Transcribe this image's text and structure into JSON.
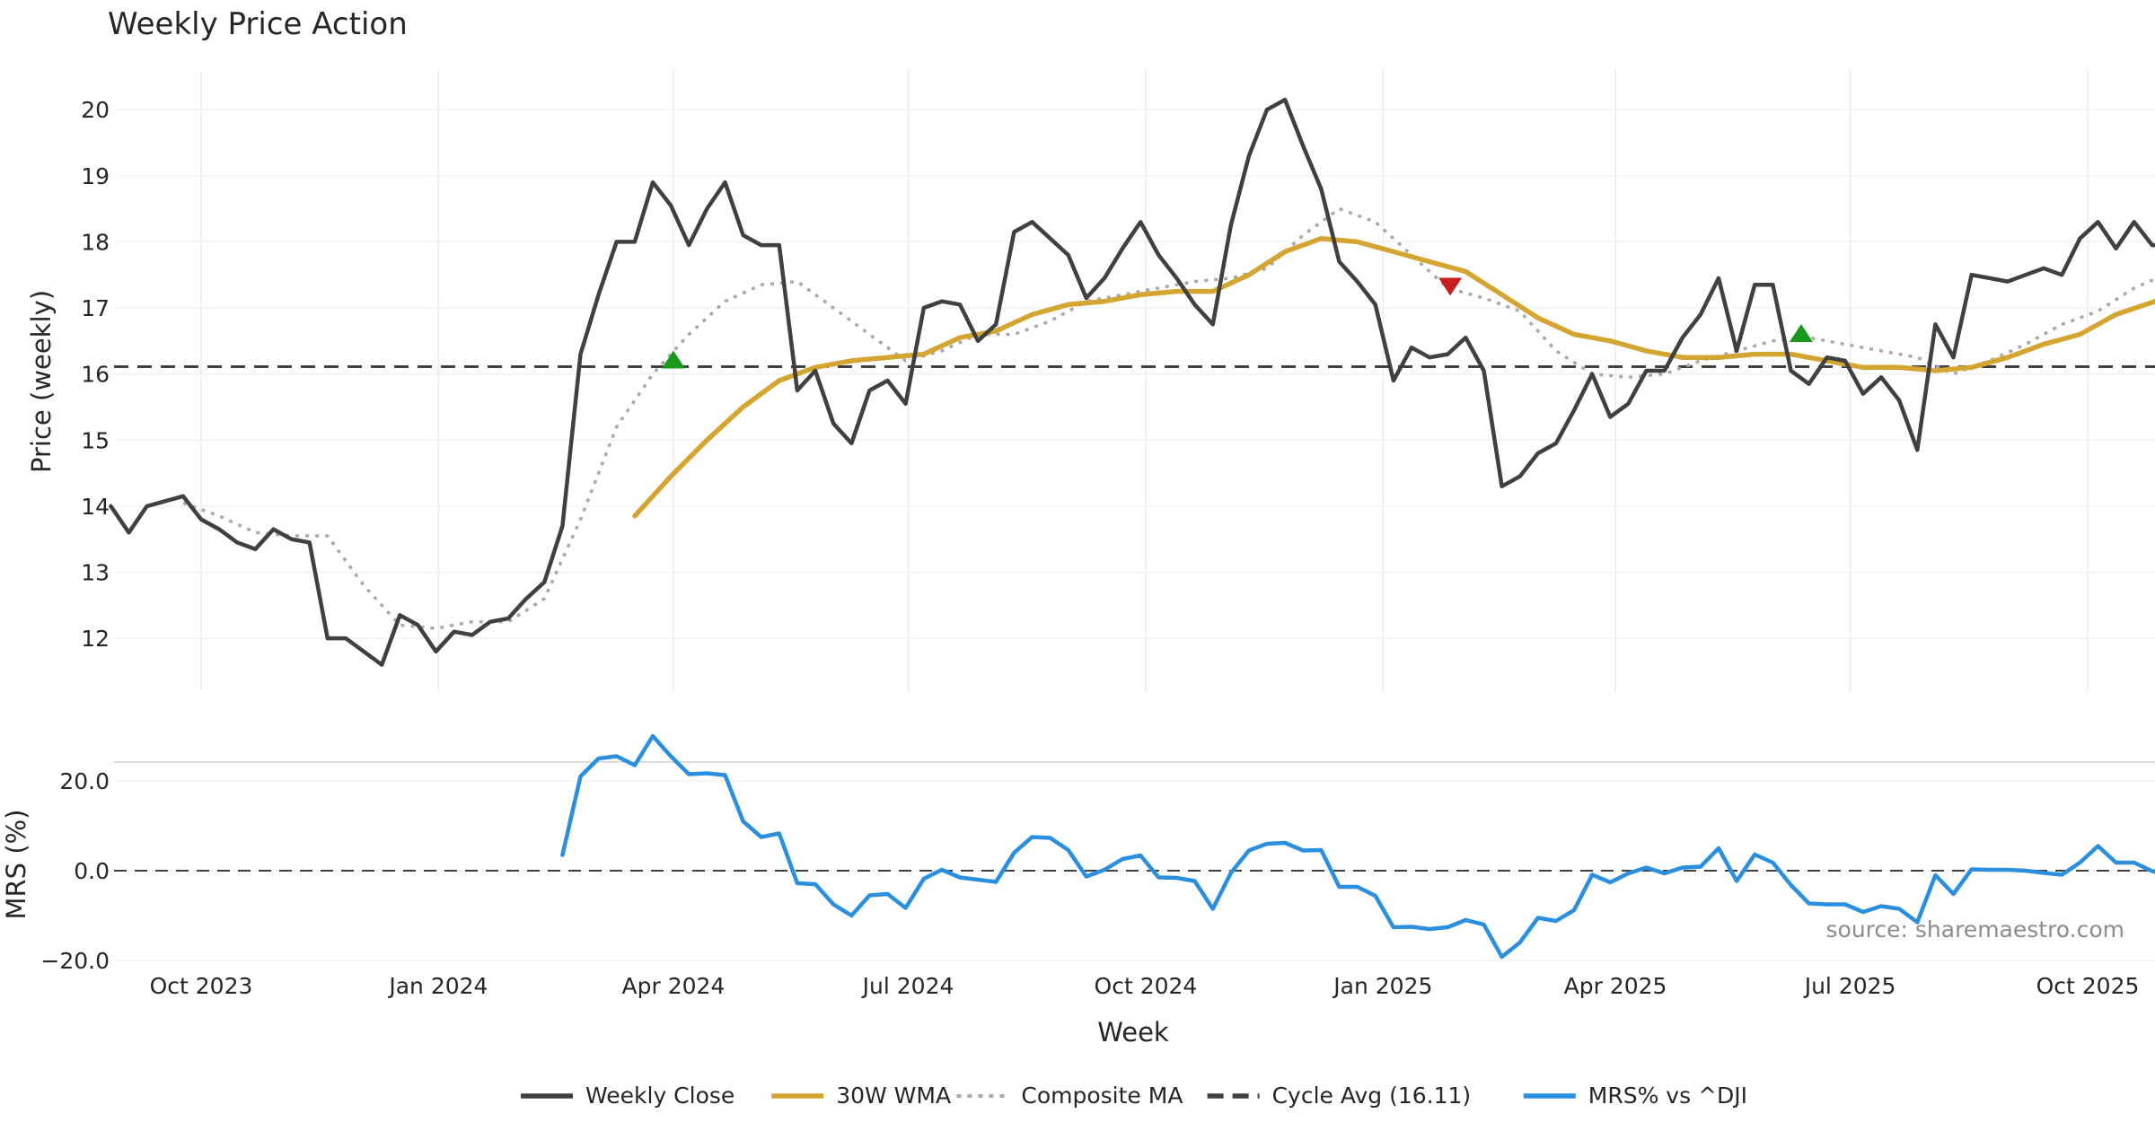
{
  "chart_data": {
    "type": "line",
    "title": "Weekly Price Action",
    "xlabel": "Week",
    "source_note": "source: sharemaestro.com",
    "x_tick_labels": [
      "Oct 2023",
      "Jan 2024",
      "Apr 2024",
      "Jul 2024",
      "Oct 2024",
      "Jan 2025",
      "Apr 2025",
      "Jul 2025",
      "Oct 2025"
    ],
    "x_tick_dates": [
      "2023-10-01",
      "2024-01-01",
      "2024-04-01",
      "2024-07-01",
      "2024-10-01",
      "2025-01-01",
      "2025-04-01",
      "2025-07-01",
      "2025-10-01"
    ],
    "x_range": [
      "2023-08-27",
      "2025-10-31"
    ],
    "price_panel": {
      "ylabel": "Price (weekly)",
      "ylim": [
        11.2,
        20.6
      ],
      "yticks": [
        "12",
        "13",
        "14",
        "15",
        "16",
        "17",
        "18",
        "19",
        "20"
      ],
      "cycle_avg": 16.11,
      "series": [
        {
          "name": "Weekly Close",
          "color": "#404040",
          "style": "solid",
          "x": [
            "2023-08-27",
            "2023-09-03",
            "2023-09-10",
            "2023-09-24",
            "2023-10-01",
            "2023-10-08",
            "2023-10-15",
            "2023-10-22",
            "2023-10-29",
            "2023-11-05",
            "2023-11-12",
            "2023-11-19",
            "2023-11-26",
            "2023-12-03",
            "2023-12-10",
            "2023-12-17",
            "2023-12-24",
            "2023-12-31",
            "2024-01-07",
            "2024-01-14",
            "2024-01-21",
            "2024-01-28",
            "2024-02-04",
            "2024-02-11",
            "2024-02-18",
            "2024-02-25",
            "2024-03-03",
            "2024-03-10",
            "2024-03-17",
            "2024-03-24",
            "2024-03-31",
            "2024-04-07",
            "2024-04-14",
            "2024-04-21",
            "2024-04-28",
            "2024-05-05",
            "2024-05-12",
            "2024-05-19",
            "2024-05-26",
            "2024-06-02",
            "2024-06-09",
            "2024-06-16",
            "2024-06-23",
            "2024-06-30",
            "2024-07-07",
            "2024-07-14",
            "2024-07-21",
            "2024-07-28",
            "2024-08-04",
            "2024-08-11",
            "2024-08-18",
            "2024-08-25",
            "2024-09-01",
            "2024-09-08",
            "2024-09-15",
            "2024-09-22",
            "2024-09-29",
            "2024-10-06",
            "2024-10-13",
            "2024-10-20",
            "2024-10-27",
            "2024-11-03",
            "2024-11-10",
            "2024-11-17",
            "2024-11-24",
            "2024-12-01",
            "2024-12-08",
            "2024-12-15",
            "2024-12-22",
            "2024-12-29",
            "2025-01-05",
            "2025-01-12",
            "2025-01-19",
            "2025-01-26",
            "2025-02-02",
            "2025-02-09",
            "2025-02-16",
            "2025-02-23",
            "2025-03-02",
            "2025-03-09",
            "2025-03-16",
            "2025-03-23",
            "2025-03-30",
            "2025-04-06",
            "2025-04-13",
            "2025-04-20",
            "2025-04-27",
            "2025-05-04",
            "2025-05-11",
            "2025-05-18",
            "2025-05-25",
            "2025-06-01",
            "2025-06-08",
            "2025-06-15",
            "2025-06-22",
            "2025-06-29",
            "2025-07-06",
            "2025-07-13",
            "2025-07-20",
            "2025-07-27",
            "2025-08-03",
            "2025-08-10",
            "2025-08-17",
            "2025-08-24",
            "2025-08-31",
            "2025-09-07",
            "2025-09-14",
            "2025-09-21",
            "2025-09-28",
            "2025-10-05",
            "2025-10-12",
            "2025-10-19",
            "2025-10-26",
            "2025-10-31"
          ],
          "values": [
            14.0,
            13.6,
            14.0,
            14.15,
            13.8,
            13.65,
            13.45,
            13.35,
            13.65,
            13.5,
            13.45,
            12.0,
            12.0,
            11.8,
            11.6,
            12.35,
            12.2,
            11.8,
            12.1,
            12.05,
            12.25,
            12.3,
            12.6,
            12.85,
            13.7,
            16.3,
            17.2,
            18.0,
            18.0,
            18.9,
            18.55,
            17.95,
            18.5,
            18.9,
            18.1,
            17.95,
            17.95,
            15.75,
            16.05,
            15.25,
            14.95,
            15.75,
            15.9,
            15.55,
            17.0,
            17.1,
            17.05,
            16.5,
            16.75,
            18.15,
            18.3,
            18.05,
            17.8,
            17.15,
            17.45,
            17.9,
            18.3,
            17.8,
            17.45,
            17.05,
            16.75,
            18.25,
            19.3,
            20.0,
            20.15,
            19.45,
            18.8,
            17.7,
            17.4,
            17.05,
            15.9,
            16.4,
            16.25,
            16.3,
            16.55,
            16.05,
            14.3,
            14.45,
            14.8,
            14.95,
            15.45,
            16.0,
            15.35,
            15.55,
            16.05,
            16.05,
            16.55,
            16.9,
            17.45,
            16.35,
            17.35,
            17.35,
            16.05,
            15.85,
            16.25,
            16.2,
            15.7,
            15.95,
            15.6,
            14.85,
            16.75,
            16.25,
            17.5,
            17.45,
            17.4,
            17.5,
            17.6,
            17.5,
            18.05,
            18.3,
            17.9,
            18.3,
            17.95,
            17.95
          ]
        },
        {
          "name": "30W WMA",
          "color": "#d4a531",
          "style": "solid",
          "x": [
            "2024-03-17",
            "2024-03-31",
            "2024-04-14",
            "2024-04-28",
            "2024-05-12",
            "2024-05-26",
            "2024-06-09",
            "2024-06-23",
            "2024-07-07",
            "2024-07-21",
            "2024-08-04",
            "2024-08-18",
            "2024-09-01",
            "2024-09-15",
            "2024-09-29",
            "2024-10-13",
            "2024-10-27",
            "2024-11-10",
            "2024-11-24",
            "2024-12-08",
            "2024-12-22",
            "2025-01-05",
            "2025-01-19",
            "2025-02-02",
            "2025-02-16",
            "2025-03-02",
            "2025-03-16",
            "2025-03-30",
            "2025-04-13",
            "2025-04-27",
            "2025-05-11",
            "2025-05-25",
            "2025-06-08",
            "2025-06-22",
            "2025-07-06",
            "2025-07-20",
            "2025-08-03",
            "2025-08-17",
            "2025-08-31",
            "2025-09-14",
            "2025-09-28",
            "2025-10-12",
            "2025-10-31"
          ],
          "values": [
            13.85,
            14.45,
            15.0,
            15.5,
            15.9,
            16.1,
            16.2,
            16.25,
            16.3,
            16.55,
            16.65,
            16.9,
            17.05,
            17.1,
            17.2,
            17.25,
            17.25,
            17.5,
            17.85,
            18.05,
            18.0,
            17.85,
            17.7,
            17.55,
            17.2,
            16.85,
            16.6,
            16.5,
            16.35,
            16.25,
            16.25,
            16.3,
            16.3,
            16.2,
            16.1,
            16.1,
            16.05,
            16.1,
            16.25,
            16.45,
            16.6,
            16.9,
            17.15
          ]
        },
        {
          "name": "Composite MA",
          "color": "#aaaaaa",
          "style": "dotted",
          "x": [
            "2023-09-24",
            "2023-10-08",
            "2023-10-22",
            "2023-11-05",
            "2023-11-19",
            "2023-12-03",
            "2023-12-17",
            "2023-12-31",
            "2024-01-14",
            "2024-01-28",
            "2024-02-11",
            "2024-02-25",
            "2024-03-10",
            "2024-03-24",
            "2024-04-07",
            "2024-04-21",
            "2024-05-05",
            "2024-05-19",
            "2024-06-02",
            "2024-06-16",
            "2024-06-30",
            "2024-07-14",
            "2024-07-28",
            "2024-08-11",
            "2024-08-25",
            "2024-09-08",
            "2024-09-22",
            "2024-10-06",
            "2024-10-20",
            "2024-11-03",
            "2024-11-17",
            "2024-12-01",
            "2024-12-15",
            "2024-12-29",
            "2025-01-12",
            "2025-01-26",
            "2025-02-09",
            "2025-02-23",
            "2025-03-09",
            "2025-03-23",
            "2025-04-06",
            "2025-04-20",
            "2025-05-04",
            "2025-05-18",
            "2025-06-01",
            "2025-06-15",
            "2025-06-29",
            "2025-07-13",
            "2025-07-27",
            "2025-08-10",
            "2025-08-24",
            "2025-09-07",
            "2025-09-21",
            "2025-10-05",
            "2025-10-19",
            "2025-10-31"
          ],
          "values": [
            14.05,
            13.85,
            13.6,
            13.55,
            13.55,
            12.8,
            12.2,
            12.15,
            12.25,
            12.25,
            12.6,
            13.8,
            15.2,
            16.0,
            16.6,
            17.1,
            17.35,
            17.4,
            17.0,
            16.6,
            16.2,
            16.35,
            16.6,
            16.6,
            16.8,
            17.1,
            17.2,
            17.3,
            17.4,
            17.45,
            17.6,
            18.1,
            18.5,
            18.3,
            17.8,
            17.3,
            17.15,
            16.95,
            16.35,
            16.0,
            15.95,
            16.0,
            16.2,
            16.35,
            16.5,
            16.55,
            16.45,
            16.35,
            16.25,
            16.0,
            16.2,
            16.45,
            16.75,
            16.95,
            17.3,
            17.5
          ]
        }
      ],
      "markers": [
        {
          "type": "buy",
          "symbol": "triangle-up",
          "color": "#1a9a1a",
          "x": "2024-04-01",
          "y": 16.22
        },
        {
          "type": "sell",
          "symbol": "triangle-down",
          "color": "#c81e1e",
          "x": "2025-01-27",
          "y": 17.32
        },
        {
          "type": "buy",
          "symbol": "triangle-up",
          "color": "#1a9a1a",
          "x": "2025-06-12",
          "y": 16.62
        }
      ]
    },
    "mrs_panel": {
      "ylabel": "MRS (%)",
      "ylim": [
        -21.0,
        23.0
      ],
      "yticks": [
        "20.0",
        "0.0",
        "−20.0"
      ],
      "ytick_values": [
        20,
        0,
        -20
      ],
      "series": [
        {
          "name": "MRS% vs ^DJI",
          "color": "#2b8fe0",
          "style": "solid",
          "x": [
            "2024-02-18",
            "2024-02-25",
            "2024-03-03",
            "2024-03-10",
            "2024-03-17",
            "2024-03-24",
            "2024-03-31",
            "2024-04-07",
            "2024-04-14",
            "2024-04-21",
            "2024-04-28",
            "2024-05-05",
            "2024-05-12",
            "2024-05-19",
            "2024-05-26",
            "2024-06-02",
            "2024-06-09",
            "2024-06-16",
            "2024-06-23",
            "2024-06-30",
            "2024-07-07",
            "2024-07-14",
            "2024-07-21",
            "2024-07-28",
            "2024-08-04",
            "2024-08-11",
            "2024-08-18",
            "2024-08-25",
            "2024-09-01",
            "2024-09-08",
            "2024-09-15",
            "2024-09-22",
            "2024-09-29",
            "2024-10-06",
            "2024-10-13",
            "2024-10-20",
            "2024-10-27",
            "2024-11-03",
            "2024-11-10",
            "2024-11-17",
            "2024-11-24",
            "2024-12-01",
            "2024-12-08",
            "2024-12-15",
            "2024-12-22",
            "2024-12-29",
            "2025-01-05",
            "2025-01-12",
            "2025-01-19",
            "2025-01-26",
            "2025-02-02",
            "2025-02-09",
            "2025-02-16",
            "2025-02-23",
            "2025-03-02",
            "2025-03-09",
            "2025-03-16",
            "2025-03-23",
            "2025-03-30",
            "2025-04-06",
            "2025-04-13",
            "2025-04-20",
            "2025-04-27",
            "2025-05-04",
            "2025-05-11",
            "2025-05-18",
            "2025-05-25",
            "2025-06-01",
            "2025-06-08",
            "2025-06-15",
            "2025-06-22",
            "2025-06-29",
            "2025-07-06",
            "2025-07-13",
            "2025-07-20",
            "2025-07-27",
            "2025-08-03",
            "2025-08-10",
            "2025-08-17",
            "2025-08-24",
            "2025-08-31",
            "2025-09-07",
            "2025-09-14",
            "2025-09-21",
            "2025-09-28",
            "2025-10-05",
            "2025-10-12",
            "2025-10-19",
            "2025-10-26",
            "2025-10-31"
          ],
          "values": [
            3.5,
            21.0,
            25.0,
            25.5,
            23.5,
            30.0,
            25.5,
            21.5,
            21.7,
            21.3,
            11.0,
            7.5,
            8.3,
            -2.8,
            -3.0,
            -7.5,
            -10.0,
            -5.5,
            -5.2,
            -8.3,
            -1.8,
            0.2,
            -1.5,
            -2.0,
            -2.5,
            4.0,
            7.5,
            7.3,
            4.6,
            -1.3,
            0.2,
            2.6,
            3.4,
            -1.5,
            -1.6,
            -2.3,
            -8.5,
            -0.5,
            4.5,
            6.0,
            6.2,
            4.5,
            4.6,
            -3.6,
            -3.6,
            -5.6,
            -12.6,
            -12.5,
            -13.0,
            -12.6,
            -11.0,
            -12.0,
            -19.2,
            -16.0,
            -10.5,
            -11.2,
            -8.8,
            -0.9,
            -2.6,
            -0.6,
            0.7,
            -0.6,
            0.7,
            0.9,
            5.0,
            -2.3,
            3.6,
            1.8,
            -3.2,
            -7.3,
            -7.5,
            -7.5,
            -9.2,
            -7.9,
            -8.5,
            -11.5,
            -1.0,
            -5.2,
            0.3,
            0.2,
            0.2,
            0.0,
            -0.5,
            -0.9,
            1.8,
            5.5,
            1.8,
            1.8,
            -0.1,
            -0.5
          ]
        }
      ]
    },
    "legend": {
      "placement": "bottom-center",
      "entries": [
        {
          "label": "Weekly Close",
          "color": "#404040",
          "style": "solid"
        },
        {
          "label": "30W WMA",
          "color": "#d4a531",
          "style": "solid"
        },
        {
          "label": "Composite MA",
          "color": "#aaaaaa",
          "style": "dotted"
        },
        {
          "label": "Cycle Avg (16.11)",
          "color": "#404040",
          "style": "dashed"
        },
        {
          "label": "MRS% vs ^DJI",
          "color": "#2b8fe0",
          "style": "solid"
        }
      ]
    },
    "grid": true
  }
}
